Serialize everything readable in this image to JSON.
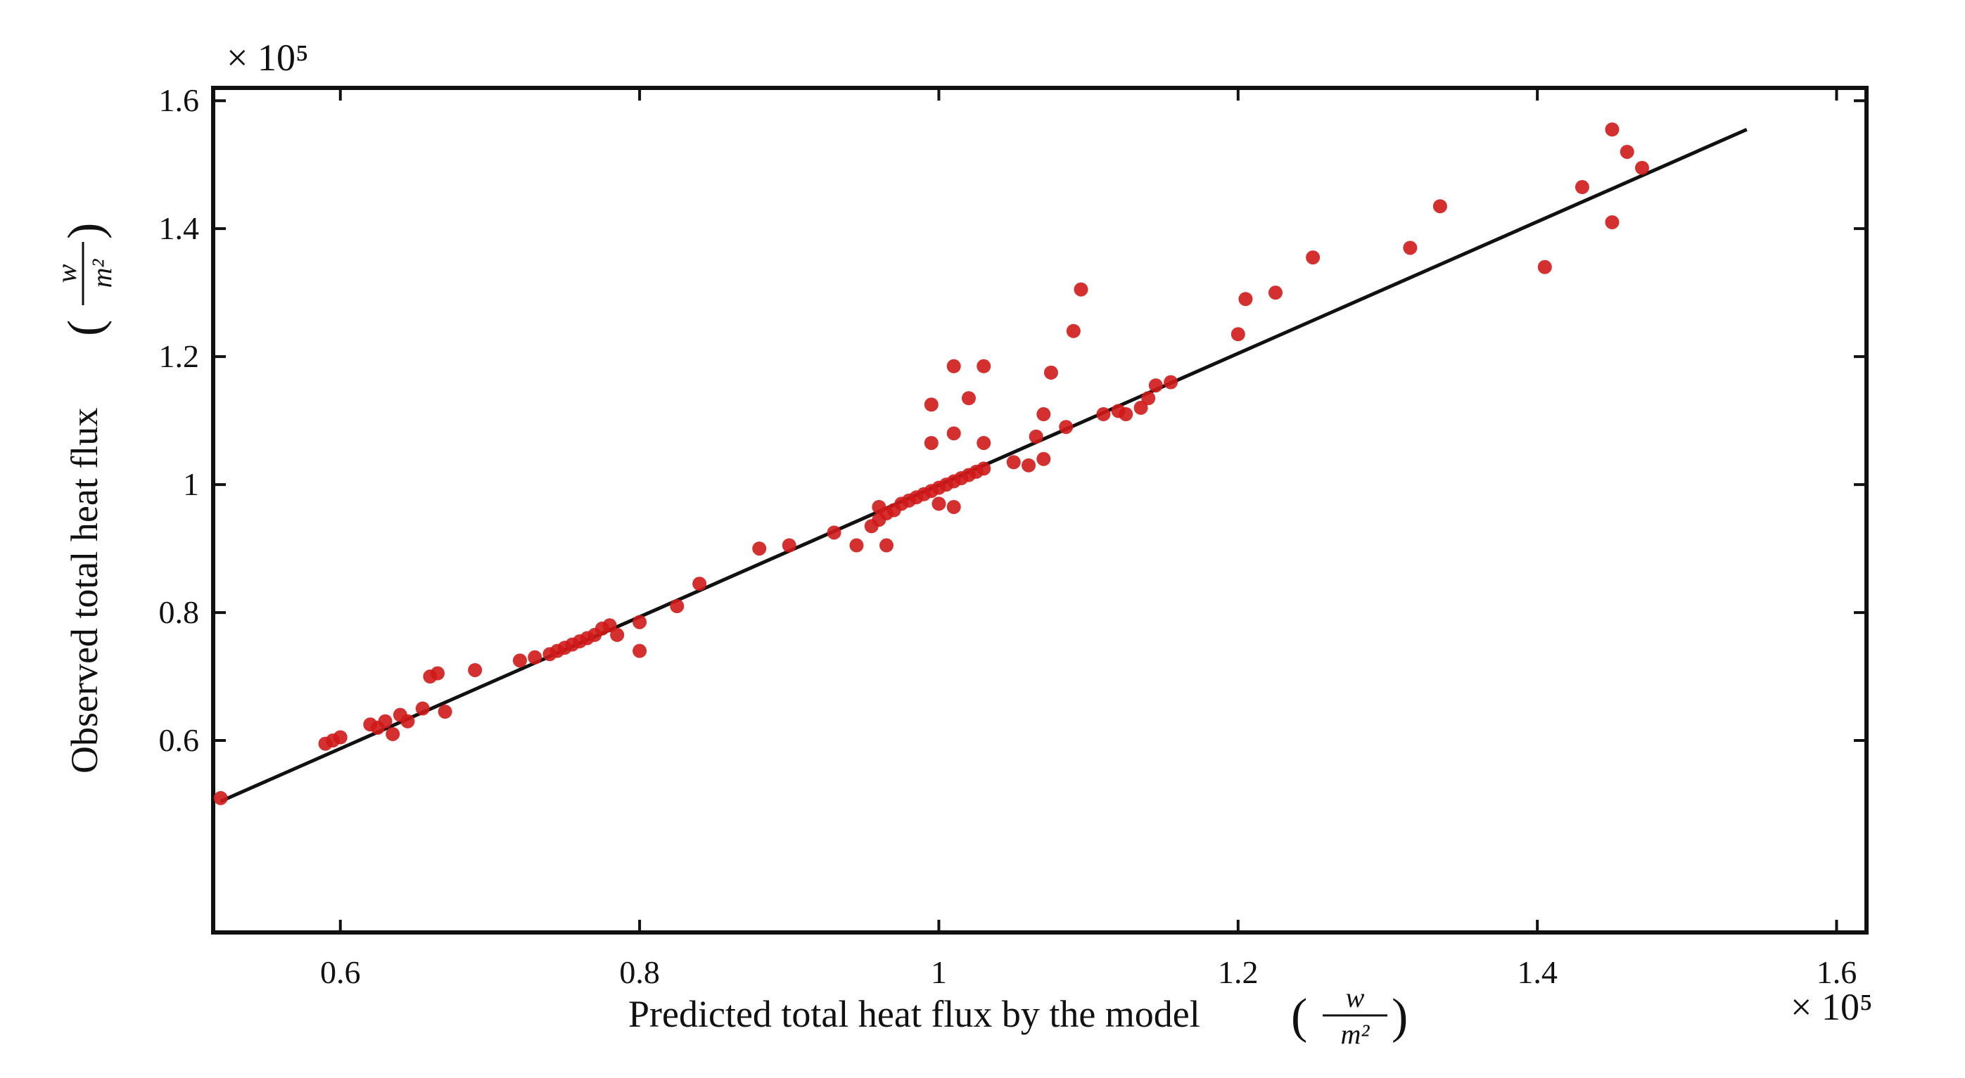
{
  "chart_data": {
    "type": "scatter",
    "xlabel": "Predicted total heat flux by the model",
    "ylabel": "Observed total heat flux",
    "unit": {
      "numerator": "w",
      "denominator": "m²"
    },
    "x_multiplier": "× 10⁵",
    "y_multiplier": "× 10⁵",
    "xlim": [
      0.515,
      1.62
    ],
    "ylim": [
      0.3,
      1.62
    ],
    "xticks": [
      0.6,
      0.8,
      1.0,
      1.2,
      1.4,
      1.6
    ],
    "xtick_labels": [
      "0.6",
      "0.8",
      "1",
      "1.2",
      "1.4",
      "1.6"
    ],
    "yticks": [
      0.6,
      0.8,
      1.0,
      1.2,
      1.4,
      1.6
    ],
    "ytick_labels": [
      "0.6",
      "0.8",
      "1",
      "1.2",
      "1.4",
      "1.6"
    ],
    "grid": false,
    "colors": {
      "points": "#d01a1a",
      "fit_line": "#111111",
      "axes": "#111111"
    },
    "fit_line": {
      "x": [
        0.52,
        1.54
      ],
      "y": [
        0.505,
        1.555
      ]
    },
    "points": [
      [
        0.52,
        0.51
      ],
      [
        0.59,
        0.595
      ],
      [
        0.6,
        0.605
      ],
      [
        0.595,
        0.6
      ],
      [
        0.62,
        0.625
      ],
      [
        0.63,
        0.63
      ],
      [
        0.635,
        0.61
      ],
      [
        0.625,
        0.62
      ],
      [
        0.64,
        0.64
      ],
      [
        0.645,
        0.63
      ],
      [
        0.655,
        0.65
      ],
      [
        0.66,
        0.7
      ],
      [
        0.665,
        0.705
      ],
      [
        0.67,
        0.645
      ],
      [
        0.69,
        0.71
      ],
      [
        0.72,
        0.725
      ],
      [
        0.73,
        0.73
      ],
      [
        0.74,
        0.735
      ],
      [
        0.745,
        0.74
      ],
      [
        0.75,
        0.745
      ],
      [
        0.755,
        0.75
      ],
      [
        0.76,
        0.755
      ],
      [
        0.765,
        0.76
      ],
      [
        0.77,
        0.765
      ],
      [
        0.775,
        0.775
      ],
      [
        0.78,
        0.78
      ],
      [
        0.785,
        0.765
      ],
      [
        0.8,
        0.74
      ],
      [
        0.8,
        0.785
      ],
      [
        0.825,
        0.81
      ],
      [
        0.84,
        0.845
      ],
      [
        0.88,
        0.9
      ],
      [
        0.9,
        0.905
      ],
      [
        0.93,
        0.925
      ],
      [
        0.945,
        0.905
      ],
      [
        0.955,
        0.935
      ],
      [
        0.96,
        0.945
      ],
      [
        0.965,
        0.955
      ],
      [
        0.96,
        0.965
      ],
      [
        0.965,
        0.905
      ],
      [
        0.97,
        0.96
      ],
      [
        0.975,
        0.97
      ],
      [
        0.98,
        0.975
      ],
      [
        0.985,
        0.98
      ],
      [
        0.99,
        0.985
      ],
      [
        0.995,
        0.99
      ],
      [
        1.0,
        0.995
      ],
      [
        1.005,
        1.0
      ],
      [
        1.01,
        1.005
      ],
      [
        1.015,
        1.01
      ],
      [
        1.02,
        1.015
      ],
      [
        1.025,
        1.02
      ],
      [
        1.03,
        1.025
      ],
      [
        1.0,
        0.97
      ],
      [
        1.01,
        0.965
      ],
      [
        0.995,
        1.065
      ],
      [
        1.01,
        1.08
      ],
      [
        0.995,
        1.125
      ],
      [
        1.01,
        1.185
      ],
      [
        1.02,
        1.135
      ],
      [
        1.03,
        1.185
      ],
      [
        1.03,
        1.065
      ],
      [
        1.05,
        1.035
      ],
      [
        1.06,
        1.03
      ],
      [
        1.065,
        1.075
      ],
      [
        1.07,
        1.04
      ],
      [
        1.07,
        1.11
      ],
      [
        1.075,
        1.175
      ],
      [
        1.085,
        1.09
      ],
      [
        1.09,
        1.24
      ],
      [
        1.095,
        1.305
      ],
      [
        1.11,
        1.11
      ],
      [
        1.12,
        1.115
      ],
      [
        1.125,
        1.11
      ],
      [
        1.135,
        1.12
      ],
      [
        1.14,
        1.135
      ],
      [
        1.145,
        1.155
      ],
      [
        1.155,
        1.16
      ],
      [
        1.2,
        1.235
      ],
      [
        1.205,
        1.29
      ],
      [
        1.225,
        1.3
      ],
      [
        1.25,
        1.355
      ],
      [
        1.315,
        1.37
      ],
      [
        1.335,
        1.435
      ],
      [
        1.405,
        1.34
      ],
      [
        1.43,
        1.465
      ],
      [
        1.45,
        1.555
      ],
      [
        1.45,
        1.41
      ],
      [
        1.46,
        1.52
      ],
      [
        1.47,
        1.495
      ]
    ]
  }
}
